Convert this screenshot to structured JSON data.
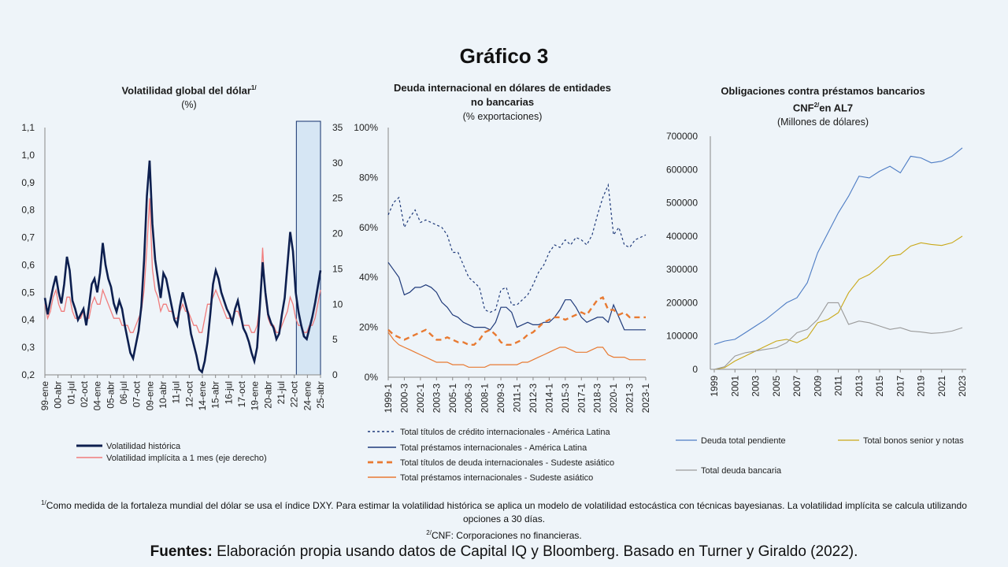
{
  "title": "Gráfico 3",
  "chart_data": [
    {
      "type": "line",
      "title": "Volatilidad global del dólar",
      "title_sup": "1/",
      "subtitle": "(%)",
      "x_ticks": [
        "99-ene",
        "00-abr",
        "01-jul",
        "02-oct",
        "04-ene",
        "05-abr",
        "06-jul",
        "07-oct",
        "09-ene",
        "10-abr",
        "11-jul",
        "12-oct",
        "14-ene",
        "15-abr",
        "16-jul",
        "17-oct",
        "19-ene",
        "20-abr",
        "21-jul",
        "22-oct",
        "24-ene",
        "25-abr"
      ],
      "y_left_ticks": [
        "0,2",
        "0,3",
        "0,4",
        "0,5",
        "0,6",
        "0,7",
        "0,8",
        "0,9",
        "1,0",
        "1,1"
      ],
      "y_left_range": [
        0.2,
        1.1
      ],
      "y_right_ticks": [
        "0",
        "5",
        "10",
        "15",
        "20",
        "25",
        "30",
        "35"
      ],
      "y_right_range": [
        0,
        35
      ],
      "highlight": {
        "from": "24-ene",
        "to": "25-abr"
      },
      "series": [
        {
          "name": "Volatilidad histórica",
          "axis": "left",
          "color": "#0d1f4f",
          "values": [
            0.48,
            0.42,
            0.47,
            0.52,
            0.56,
            0.5,
            0.46,
            0.53,
            0.63,
            0.58,
            0.47,
            0.44,
            0.4,
            0.42,
            0.44,
            0.38,
            0.45,
            0.53,
            0.55,
            0.5,
            0.57,
            0.68,
            0.6,
            0.55,
            0.52,
            0.46,
            0.43,
            0.47,
            0.44,
            0.38,
            0.33,
            0.28,
            0.26,
            0.31,
            0.36,
            0.45,
            0.62,
            0.85,
            0.98,
            0.75,
            0.62,
            0.55,
            0.48,
            0.57,
            0.55,
            0.5,
            0.45,
            0.4,
            0.38,
            0.45,
            0.5,
            0.46,
            0.42,
            0.35,
            0.31,
            0.27,
            0.22,
            0.21,
            0.25,
            0.32,
            0.42,
            0.53,
            0.58,
            0.55,
            0.5,
            0.47,
            0.44,
            0.42,
            0.39,
            0.44,
            0.47,
            0.42,
            0.37,
            0.35,
            0.32,
            0.28,
            0.25,
            0.3,
            0.45,
            0.61,
            0.5,
            0.42,
            0.39,
            0.37,
            0.33,
            0.35,
            0.42,
            0.48,
            0.6,
            0.72,
            0.65,
            0.5,
            0.43,
            0.38,
            0.34,
            0.33,
            0.37,
            0.41,
            0.46,
            0.52,
            0.58
          ]
        },
        {
          "name": "Volatilidad implícita a 1 mes (eje derecho)",
          "axis": "right",
          "color": "#f07c7c",
          "values": [
            10,
            8,
            9,
            11,
            12,
            10,
            9,
            9,
            11,
            11,
            9,
            8,
            8,
            8,
            9,
            8,
            8,
            10,
            11,
            10,
            10,
            12,
            11,
            10,
            9,
            8,
            8,
            8,
            7,
            7,
            7,
            6,
            6,
            7,
            8,
            9,
            12,
            18,
            25,
            15,
            12,
            11,
            9,
            10,
            10,
            9,
            9,
            8,
            8,
            9,
            10,
            9,
            9,
            8,
            7,
            7,
            6,
            6,
            8,
            10,
            10,
            11,
            12,
            11,
            10,
            9,
            8,
            8,
            8,
            9,
            9,
            8,
            7,
            7,
            7,
            6,
            6,
            7,
            10,
            18,
            11,
            8,
            7,
            7,
            6,
            6,
            7,
            8,
            9,
            11,
            10,
            8,
            7,
            7,
            6,
            6,
            7,
            7,
            8,
            10,
            12
          ]
        }
      ]
    },
    {
      "type": "line",
      "title_lines": [
        "Deuda internacional en dólares de entidades",
        "no bancarias"
      ],
      "subtitle": "(% exportaciones)",
      "x_ticks": [
        "1999-1",
        "2000-3",
        "2002-1",
        "2003-3",
        "2005-1",
        "2006-3",
        "2008-1",
        "2009-3",
        "2011-1",
        "2012-3",
        "2014-1",
        "2015-3",
        "2017-1",
        "2018-3",
        "2020-1",
        "2021-3",
        "2023-1"
      ],
      "y_ticks": [
        "0%",
        "20%",
        "40%",
        "60%",
        "80%",
        "100%"
      ],
      "y_range": [
        0,
        100
      ],
      "series": [
        {
          "name": "Total títulos de crédito internacionales - América Latina",
          "style": "dotted",
          "color": "#1f3a7a",
          "values": [
            65,
            70,
            72,
            60,
            64,
            67,
            62,
            63,
            62,
            61,
            60,
            57,
            50,
            50,
            45,
            40,
            38,
            36,
            27,
            26,
            27,
            35,
            36,
            29,
            29,
            31,
            33,
            37,
            42,
            45,
            50,
            53,
            52,
            55,
            53,
            56,
            55,
            53,
            57,
            65,
            72,
            77,
            57,
            60,
            53,
            52,
            55,
            56,
            57
          ]
        },
        {
          "name": "Total préstamos internacionales - América Latina",
          "style": "solid",
          "color": "#1f3a7a",
          "values": [
            46,
            43,
            40,
            33,
            34,
            36,
            36,
            37,
            36,
            34,
            30,
            28,
            25,
            24,
            22,
            21,
            20,
            20,
            20,
            19,
            22,
            28,
            28,
            26,
            20,
            21,
            22,
            21,
            21,
            22,
            22,
            24,
            27,
            31,
            31,
            28,
            24,
            22,
            23,
            24,
            24,
            22,
            29,
            24,
            19,
            19,
            19,
            19,
            19
          ]
        },
        {
          "name": "Total títulos de deuda internacionales - Sudeste asiático",
          "style": "dashed",
          "color": "#e87a32",
          "values": [
            19,
            17,
            16,
            15,
            16,
            17,
            18,
            19,
            17,
            15,
            15,
            16,
            15,
            14,
            14,
            13,
            13,
            15,
            18,
            19,
            17,
            14,
            13,
            13,
            14,
            15,
            17,
            18,
            20,
            22,
            23,
            24,
            24,
            23,
            24,
            25,
            26,
            25,
            28,
            31,
            32,
            27,
            27,
            25,
            26,
            24,
            24,
            24,
            24
          ]
        },
        {
          "name": "Total préstamos internacionales - Sudeste asiático",
          "style": "solid",
          "color": "#e87a32",
          "values": [
            18,
            15,
            13,
            12,
            11,
            10,
            9,
            8,
            7,
            6,
            6,
            6,
            5,
            5,
            5,
            4,
            4,
            4,
            4,
            5,
            5,
            5,
            5,
            5,
            5,
            6,
            6,
            7,
            8,
            9,
            10,
            11,
            12,
            12,
            11,
            10,
            10,
            10,
            11,
            12,
            12,
            9,
            8,
            8,
            8,
            7,
            7,
            7,
            7
          ]
        }
      ]
    },
    {
      "type": "line",
      "title_lines": [
        "Obligaciones contra préstamos bancarios",
        "CNF",
        "en AL7"
      ],
      "title_sup": "2/",
      "subtitle": "(Millones de dólares)",
      "x_ticks": [
        "1999",
        "2001",
        "2003",
        "2005",
        "2007",
        "2009",
        "2011",
        "2013",
        "2015",
        "2017",
        "2019",
        "2021",
        "2023"
      ],
      "x_values": [
        1999,
        2000,
        2001,
        2002,
        2003,
        2004,
        2005,
        2006,
        2007,
        2008,
        2009,
        2010,
        2011,
        2012,
        2013,
        2014,
        2015,
        2016,
        2017,
        2018,
        2019,
        2020,
        2021,
        2022,
        2023
      ],
      "y_ticks": [
        "0",
        "100000",
        "200000",
        "300000",
        "400000",
        "500000",
        "600000",
        "700000"
      ],
      "y_range": [
        0,
        700000
      ],
      "series": [
        {
          "name": "Deuda total pendiente",
          "color": "#4d7cc4",
          "values": [
            75000,
            85000,
            90000,
            110000,
            130000,
            150000,
            175000,
            200000,
            215000,
            260000,
            350000,
            410000,
            470000,
            520000,
            580000,
            575000,
            595000,
            610000,
            590000,
            640000,
            635000,
            620000,
            625000,
            640000,
            665000
          ]
        },
        {
          "name": "Total bonos senior y notas",
          "color": "#c9a818",
          "values": [
            0,
            5000,
            25000,
            40000,
            55000,
            70000,
            85000,
            90000,
            80000,
            95000,
            140000,
            150000,
            170000,
            230000,
            270000,
            285000,
            310000,
            340000,
            345000,
            370000,
            380000,
            375000,
            372000,
            380000,
            400000
          ]
        },
        {
          "name": "Total deuda bancaria",
          "color": "#9a9a9a",
          "values": [
            0,
            8000,
            40000,
            50000,
            55000,
            60000,
            65000,
            80000,
            110000,
            120000,
            150000,
            200000,
            200000,
            135000,
            145000,
            140000,
            130000,
            120000,
            125000,
            115000,
            112000,
            108000,
            110000,
            115000,
            125000
          ]
        }
      ]
    }
  ],
  "notes": {
    "note1_sup": "1/",
    "note1": "Como medida de la fortaleza mundial del dólar se usa el índice DXY. Para estimar la volatilidad histórica se aplica un modelo de volatilidad estocástica con técnicas bayesianas. La volatilidad implícita se calcula utilizando opciones a 30 días.",
    "note2_sup": "2/",
    "note2": "CNF: Corporaciones no financieras."
  },
  "sources": {
    "label": "Fuentes:",
    "text": " Elaboración propia usando datos de Capital IQ y Bloomberg. Basado en Turner y Giraldo (2022)."
  }
}
